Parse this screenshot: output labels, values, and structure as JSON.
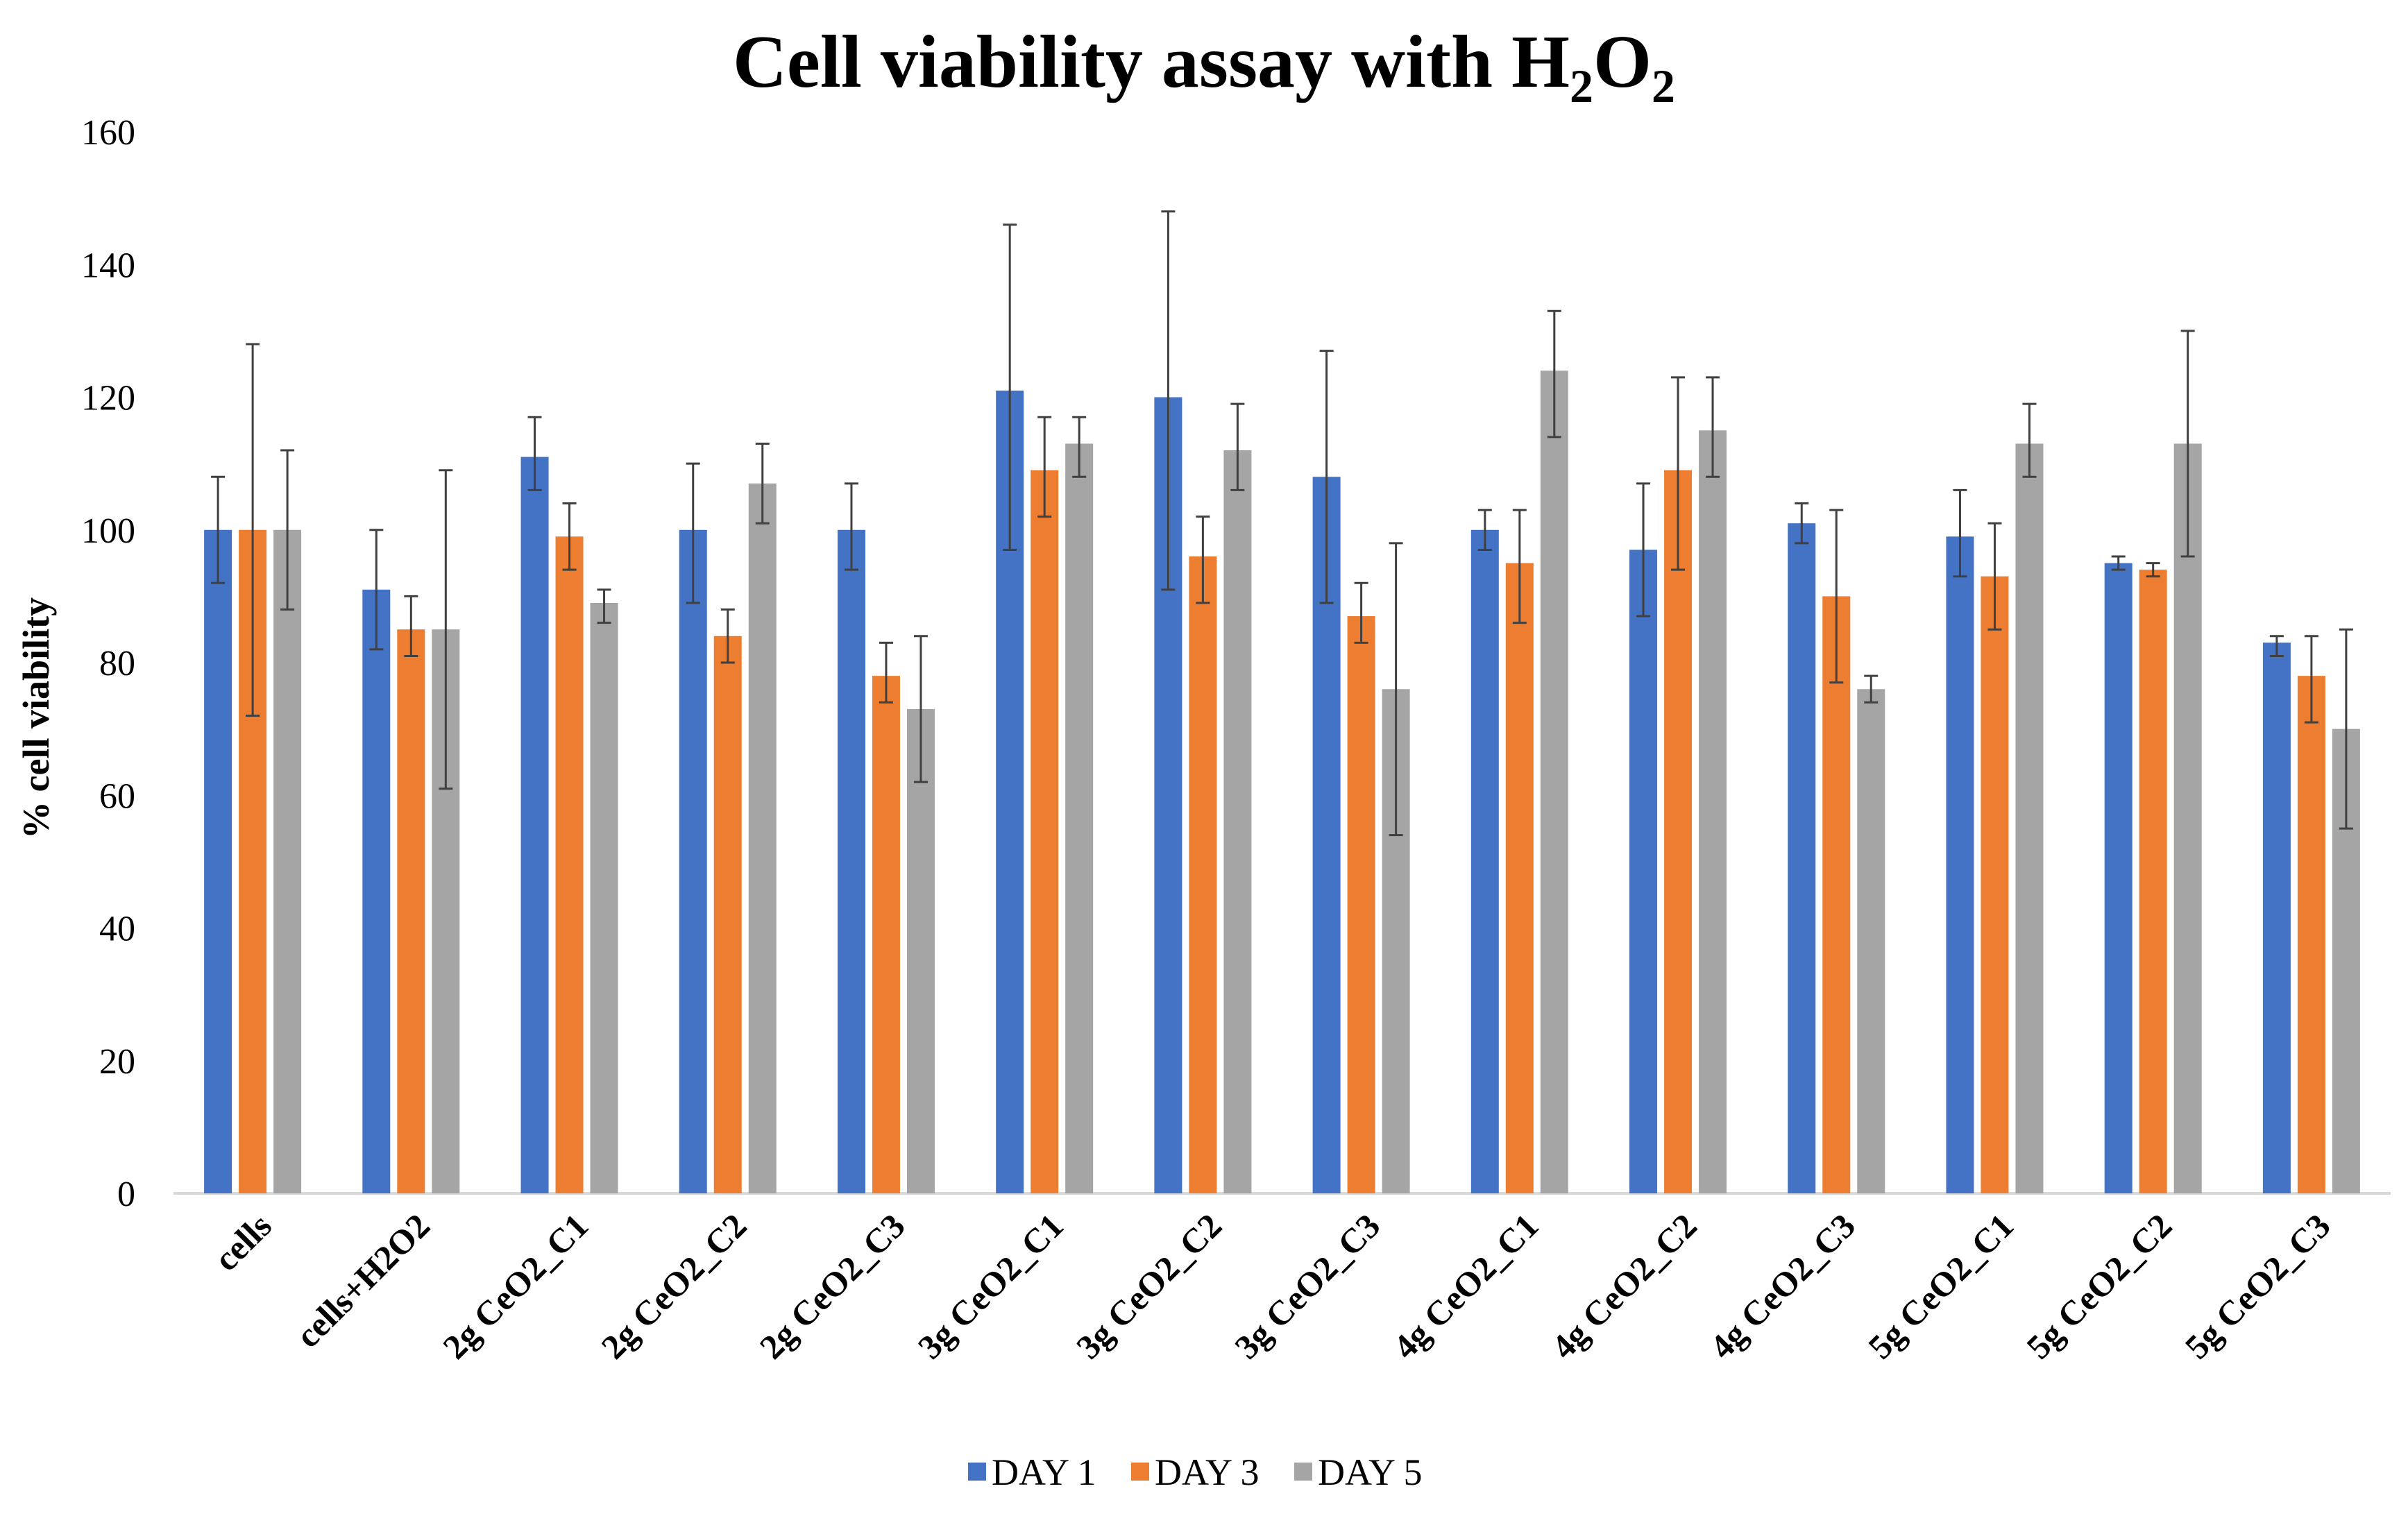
{
  "chart_data": {
    "type": "bar",
    "title_main": "Cell viability assay with H",
    "title_sub1": "2",
    "title_mid": "O",
    "title_sub2": "2",
    "xlabel": "",
    "ylabel": "% cell viability",
    "ylim": [
      0,
      160
    ],
    "yticks": [
      "0",
      "20",
      "40",
      "60",
      "80",
      "100",
      "120",
      "140",
      "160"
    ],
    "grid": false,
    "legend_position": "bottom",
    "categories": [
      "cells",
      "cells+H2O2",
      "2g CeO2_C1",
      "2g CeO2_C2",
      "2g CeO2_C3",
      "3g CeO2_C1",
      "3g CeO2_C2",
      "3g CeO2_C3",
      "4g CeO2_C1",
      "4g CeO2_C2",
      "4g CeO2_C3",
      "5g CeO2_C1",
      "5g CeO2_C2",
      "5g CeO2_C3"
    ],
    "series": [
      {
        "name": "DAY 1",
        "color": "#4472C4",
        "values": [
          100,
          91,
          111,
          100,
          100,
          121,
          120,
          108,
          100,
          97,
          101,
          99,
          95,
          83
        ],
        "err_high": [
          108,
          100,
          117,
          110,
          107,
          146,
          148,
          127,
          103,
          107,
          104,
          106,
          96,
          84
        ],
        "err_low": [
          92,
          82,
          106,
          89,
          94,
          97,
          91,
          89,
          97,
          87,
          98,
          93,
          94,
          81
        ]
      },
      {
        "name": "DAY 3",
        "color": "#ED7D31",
        "values": [
          100,
          85,
          99,
          84,
          78,
          109,
          96,
          87,
          95,
          109,
          90,
          93,
          94,
          78
        ],
        "err_high": [
          128,
          90,
          104,
          88,
          83,
          117,
          102,
          92,
          103,
          123,
          103,
          101,
          95,
          84
        ],
        "err_low": [
          72,
          81,
          94,
          80,
          74,
          102,
          89,
          83,
          86,
          94,
          77,
          85,
          93,
          71
        ]
      },
      {
        "name": "DAY 5",
        "color": "#A5A5A5",
        "values": [
          100,
          85,
          89,
          107,
          73,
          113,
          112,
          76,
          124,
          115,
          76,
          113,
          113,
          70
        ],
        "err_high": [
          112,
          109,
          91,
          113,
          84,
          117,
          119,
          98,
          133,
          123,
          78,
          119,
          130,
          85
        ],
        "err_low": [
          88,
          61,
          86,
          101,
          62,
          108,
          106,
          54,
          114,
          108,
          74,
          108,
          96,
          55
        ]
      }
    ]
  }
}
